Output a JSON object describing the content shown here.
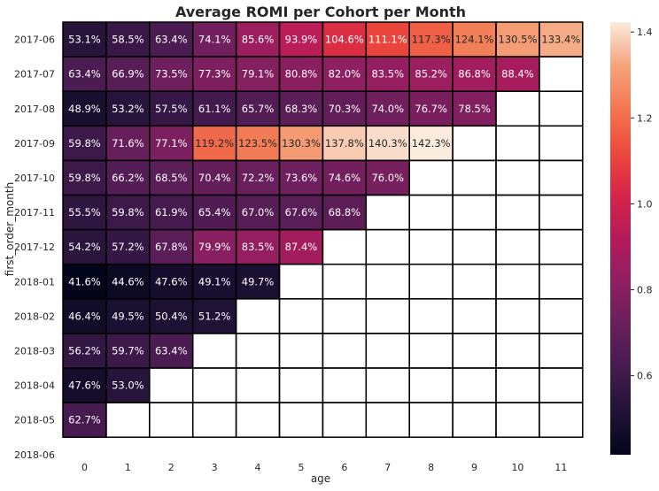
{
  "chart_data": {
    "type": "heatmap",
    "title": "Average ROMI per Cohort per Month",
    "xlabel": "age",
    "ylabel": "first_order_month",
    "x_ticks": [
      "0",
      "1",
      "2",
      "3",
      "4",
      "5",
      "6",
      "7",
      "8",
      "9",
      "10",
      "11"
    ],
    "y_ticks": [
      "2017-06",
      "2017-07",
      "2017-08",
      "2017-09",
      "2017-10",
      "2017-11",
      "2017-12",
      "2018-01",
      "2018-02",
      "2018-03",
      "2018-04",
      "2018-05",
      "2018-06"
    ],
    "values": [
      [
        0.531,
        0.585,
        0.634,
        0.741,
        0.856,
        0.939,
        1.046,
        1.111,
        1.173,
        1.241,
        1.305,
        1.334
      ],
      [
        0.634,
        0.669,
        0.735,
        0.773,
        0.791,
        0.808,
        0.82,
        0.835,
        0.852,
        0.868,
        0.884,
        null
      ],
      [
        0.489,
        0.532,
        0.575,
        0.611,
        0.657,
        0.683,
        0.703,
        0.74,
        0.767,
        0.785,
        null,
        null
      ],
      [
        0.598,
        0.716,
        0.771,
        1.192,
        1.235,
        1.303,
        1.378,
        1.403,
        1.423,
        null,
        null,
        null
      ],
      [
        0.598,
        0.662,
        0.685,
        0.704,
        0.722,
        0.736,
        0.746,
        0.76,
        null,
        null,
        null,
        null
      ],
      [
        0.555,
        0.598,
        0.619,
        0.654,
        0.67,
        0.676,
        0.688,
        null,
        null,
        null,
        null,
        null
      ],
      [
        0.542,
        0.572,
        0.678,
        0.799,
        0.835,
        0.874,
        null,
        null,
        null,
        null,
        null,
        null
      ],
      [
        0.416,
        0.446,
        0.476,
        0.491,
        0.497,
        null,
        null,
        null,
        null,
        null,
        null,
        null
      ],
      [
        0.464,
        0.495,
        0.504,
        0.512,
        null,
        null,
        null,
        null,
        null,
        null,
        null,
        null
      ],
      [
        0.562,
        0.597,
        0.634,
        null,
        null,
        null,
        null,
        null,
        null,
        null,
        null,
        null
      ],
      [
        0.476,
        0.53,
        null,
        null,
        null,
        null,
        null,
        null,
        null,
        null,
        null,
        null
      ],
      [
        0.627,
        null,
        null,
        null,
        null,
        null,
        null,
        null,
        null,
        null,
        null,
        null
      ],
      [
        null,
        null,
        null,
        null,
        null,
        null,
        null,
        null,
        null,
        null,
        null,
        null
      ]
    ],
    "labels": [
      [
        "53.1%",
        "58.5%",
        "63.4%",
        "74.1%",
        "85.6%",
        "93.9%",
        "104.6%",
        "111.1%",
        "117.3%",
        "124.1%",
        "130.5%",
        "133.4%"
      ],
      [
        "63.4%",
        "66.9%",
        "73.5%",
        "77.3%",
        "79.1%",
        "80.8%",
        "82.0%",
        "83.5%",
        "85.2%",
        "86.8%",
        "88.4%",
        ""
      ],
      [
        "48.9%",
        "53.2%",
        "57.5%",
        "61.1%",
        "65.7%",
        "68.3%",
        "70.3%",
        "74.0%",
        "76.7%",
        "78.5%",
        "",
        ""
      ],
      [
        "59.8%",
        "71.6%",
        "77.1%",
        "119.2%",
        "123.5%",
        "130.3%",
        "137.8%",
        "140.3%",
        "142.3%",
        "",
        "",
        ""
      ],
      [
        "59.8%",
        "66.2%",
        "68.5%",
        "70.4%",
        "72.2%",
        "73.6%",
        "74.6%",
        "76.0%",
        "",
        "",
        "",
        ""
      ],
      [
        "55.5%",
        "59.8%",
        "61.9%",
        "65.4%",
        "67.0%",
        "67.6%",
        "68.8%",
        "",
        "",
        "",
        "",
        ""
      ],
      [
        "54.2%",
        "57.2%",
        "67.8%",
        "79.9%",
        "83.5%",
        "87.4%",
        "",
        "",
        "",
        "",
        "",
        ""
      ],
      [
        "41.6%",
        "44.6%",
        "47.6%",
        "49.1%",
        "49.7%",
        "",
        "",
        "",
        "",
        "",
        "",
        ""
      ],
      [
        "46.4%",
        "49.5%",
        "50.4%",
        "51.2%",
        "",
        "",
        "",
        "",
        "",
        "",
        "",
        ""
      ],
      [
        "56.2%",
        "59.7%",
        "63.4%",
        "",
        "",
        "",
        "",
        "",
        "",
        "",
        "",
        ""
      ],
      [
        "47.6%",
        "53.0%",
        "",
        "",
        "",
        "",
        "",
        "",
        "",
        "",
        "",
        ""
      ],
      [
        "62.7%",
        "",
        "",
        "",
        "",
        "",
        "",
        "",
        "",
        "",
        "",
        ""
      ],
      [
        "",
        "",
        "",
        "",
        "",
        "",
        "",
        "",
        "",
        "",
        "",
        ""
      ]
    ],
    "colorbar": {
      "colormap": "rocket",
      "vmin": 0.416,
      "vmax": 1.423,
      "ticks": [
        0.6,
        0.8,
        1.0,
        1.2,
        1.4
      ],
      "tick_labels": [
        "0.6",
        "0.8",
        "1.0",
        "1.2",
        "1.4"
      ]
    },
    "grid": true,
    "legend": "colorbar-right"
  }
}
